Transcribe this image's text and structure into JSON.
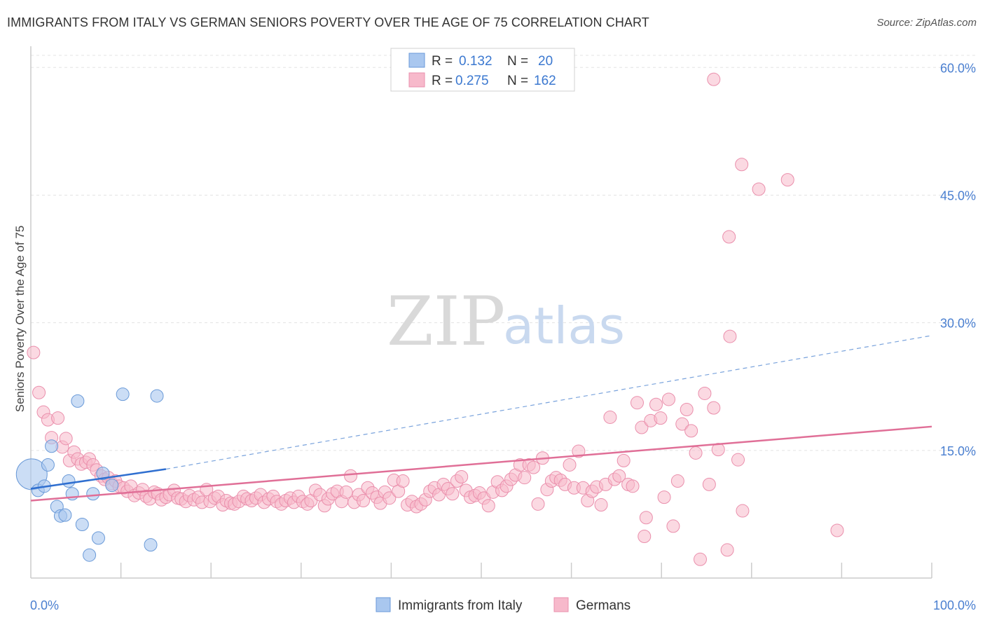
{
  "header": {
    "title": "IMMIGRANTS FROM ITALY VS GERMAN SENIORS POVERTY OVER THE AGE OF 75 CORRELATION CHART",
    "source": "Source: ZipAtlas.com"
  },
  "watermark": {
    "zip": "ZIP",
    "atlas": "atlas"
  },
  "legend": {
    "rows": [
      {
        "r_label": "R =",
        "r_value": "0.132",
        "n_label": "N =",
        "n_value": "20",
        "color": "#a9c7ef",
        "stroke": "#6a9ad8"
      },
      {
        "r_label": "R =",
        "r_value": "0.275",
        "n_label": "N =",
        "n_value": "162",
        "color": "#f7b9cb",
        "stroke": "#ea8fac"
      }
    ]
  },
  "chart_data": {
    "type": "scatter",
    "ylabel": "Seniors Poverty Over the Age of 75",
    "xlim": [
      0,
      100
    ],
    "ylim": [
      0,
      62
    ],
    "x_tick_labels": [
      {
        "value": 0,
        "label": "0.0%"
      },
      {
        "value": 100,
        "label": "100.0%"
      }
    ],
    "y_tick_labels": [
      {
        "value": 15,
        "label": "15.0%"
      },
      {
        "value": 30,
        "label": "30.0%"
      },
      {
        "value": 45,
        "label": "45.0%"
      },
      {
        "value": 60,
        "label": "60.0%"
      }
    ],
    "grid": true,
    "legend_position": "top-center",
    "series": [
      {
        "name": "Immigrants from Italy",
        "color": "#a9c7ef",
        "stroke": "#6a9ad8",
        "line_color": "#2f6fd0",
        "trend": {
          "x0": 0,
          "y0": 10.5,
          "x1": 15,
          "y1": 12.8,
          "dashed_to_x": 100,
          "dashed_to_y": 28.5
        },
        "points": [
          [
            0.1,
            12.2,
            22
          ],
          [
            0.8,
            10.3,
            9
          ],
          [
            1.5,
            10.8,
            9
          ],
          [
            1.9,
            13.3,
            9
          ],
          [
            2.3,
            15.5,
            9
          ],
          [
            2.9,
            8.4,
            9
          ],
          [
            3.3,
            7.3,
            9
          ],
          [
            3.8,
            7.4,
            9
          ],
          [
            4.2,
            11.4,
            9
          ],
          [
            4.6,
            9.9,
            9
          ],
          [
            5.2,
            20.8,
            9
          ],
          [
            5.7,
            6.3,
            9
          ],
          [
            6.5,
            2.7,
            9
          ],
          [
            6.9,
            9.9,
            9
          ],
          [
            7.5,
            4.7,
            9
          ],
          [
            8.0,
            12.3,
            9
          ],
          [
            9.0,
            10.9,
            9
          ],
          [
            10.2,
            21.6,
            9
          ],
          [
            13.3,
            3.9,
            9
          ],
          [
            14.0,
            21.4,
            9
          ]
        ]
      },
      {
        "name": "Germans",
        "color": "#f7b9cb",
        "stroke": "#ea8fac",
        "line_color": "#e06f97",
        "trend": {
          "x0": 0,
          "y0": 9.1,
          "x1": 100,
          "y1": 17.8
        },
        "points": [
          [
            0.3,
            26.5
          ],
          [
            0.9,
            21.8
          ],
          [
            1.4,
            19.5
          ],
          [
            1.9,
            18.6
          ],
          [
            2.3,
            16.5
          ],
          [
            3.0,
            18.8
          ],
          [
            3.5,
            15.4
          ],
          [
            3.9,
            16.4
          ],
          [
            4.3,
            13.8
          ],
          [
            4.8,
            14.8
          ],
          [
            5.2,
            14.0
          ],
          [
            5.6,
            13.4
          ],
          [
            6.1,
            13.6
          ],
          [
            6.5,
            14.0
          ],
          [
            6.9,
            13.3
          ],
          [
            7.3,
            12.7
          ],
          [
            7.8,
            12.0
          ],
          [
            8.2,
            11.6
          ],
          [
            8.6,
            11.8
          ],
          [
            9.0,
            11.1
          ],
          [
            9.4,
            11.4
          ],
          [
            9.8,
            10.8
          ],
          [
            10.3,
            10.6
          ],
          [
            10.7,
            10.2
          ],
          [
            11.1,
            10.8
          ],
          [
            11.5,
            9.7
          ],
          [
            12.0,
            10.0
          ],
          [
            12.4,
            10.4
          ],
          [
            12.8,
            9.6
          ],
          [
            13.2,
            9.3
          ],
          [
            13.7,
            10.1
          ],
          [
            14.1,
            9.9
          ],
          [
            14.5,
            9.2
          ],
          [
            15.0,
            9.5
          ],
          [
            15.4,
            9.8
          ],
          [
            15.9,
            10.3
          ],
          [
            16.3,
            9.4
          ],
          [
            16.7,
            9.3
          ],
          [
            17.2,
            9.0
          ],
          [
            17.6,
            9.7
          ],
          [
            18.1,
            9.2
          ],
          [
            18.6,
            9.5
          ],
          [
            19.0,
            8.9
          ],
          [
            19.5,
            10.4
          ],
          [
            19.9,
            9.0
          ],
          [
            20.4,
            9.4
          ],
          [
            20.8,
            9.6
          ],
          [
            21.3,
            8.6
          ],
          [
            21.7,
            9.1
          ],
          [
            22.2,
            8.8
          ],
          [
            22.6,
            8.7
          ],
          [
            23.1,
            9.0
          ],
          [
            23.6,
            9.6
          ],
          [
            24.0,
            9.3
          ],
          [
            24.5,
            9.1
          ],
          [
            25.0,
            9.4
          ],
          [
            25.5,
            9.8
          ],
          [
            25.9,
            8.9
          ],
          [
            26.4,
            9.3
          ],
          [
            26.9,
            9.6
          ],
          [
            27.3,
            9.0
          ],
          [
            27.8,
            8.7
          ],
          [
            28.3,
            9.1
          ],
          [
            28.8,
            9.4
          ],
          [
            29.2,
            8.9
          ],
          [
            29.7,
            9.6
          ],
          [
            30.2,
            9.0
          ],
          [
            30.7,
            8.7
          ],
          [
            31.1,
            9.1
          ],
          [
            31.6,
            10.3
          ],
          [
            32.1,
            9.8
          ],
          [
            32.6,
            8.5
          ],
          [
            33.0,
            9.3
          ],
          [
            33.5,
            9.9
          ],
          [
            34.0,
            10.2
          ],
          [
            34.5,
            9.0
          ],
          [
            35.0,
            10.1
          ],
          [
            35.5,
            12.0
          ],
          [
            35.9,
            8.9
          ],
          [
            36.4,
            9.8
          ],
          [
            36.9,
            9.1
          ],
          [
            37.4,
            10.6
          ],
          [
            37.9,
            10.0
          ],
          [
            38.4,
            9.5
          ],
          [
            38.8,
            8.8
          ],
          [
            39.3,
            10.1
          ],
          [
            39.8,
            9.4
          ],
          [
            40.3,
            11.5
          ],
          [
            40.8,
            10.2
          ],
          [
            41.3,
            11.4
          ],
          [
            41.8,
            8.6
          ],
          [
            42.3,
            9.0
          ],
          [
            42.8,
            8.4
          ],
          [
            43.3,
            8.7
          ],
          [
            43.8,
            9.2
          ],
          [
            44.3,
            10.2
          ],
          [
            44.8,
            10.6
          ],
          [
            45.3,
            9.8
          ],
          [
            45.8,
            11.0
          ],
          [
            46.3,
            10.5
          ],
          [
            46.8,
            9.9
          ],
          [
            47.3,
            11.4
          ],
          [
            47.8,
            11.9
          ],
          [
            48.3,
            10.3
          ],
          [
            48.8,
            9.5
          ],
          [
            49.3,
            9.7
          ],
          [
            49.8,
            10.0
          ],
          [
            50.3,
            9.4
          ],
          [
            50.8,
            8.5
          ],
          [
            51.3,
            10.1
          ],
          [
            51.8,
            11.3
          ],
          [
            52.3,
            10.3
          ],
          [
            52.8,
            10.8
          ],
          [
            53.3,
            11.6
          ],
          [
            53.8,
            12.1
          ],
          [
            54.3,
            13.3
          ],
          [
            54.8,
            11.8
          ],
          [
            55.3,
            13.3
          ],
          [
            55.8,
            13.0
          ],
          [
            56.3,
            8.7
          ],
          [
            56.8,
            14.1
          ],
          [
            57.3,
            10.4
          ],
          [
            57.8,
            11.4
          ],
          [
            58.3,
            11.8
          ],
          [
            58.8,
            11.5
          ],
          [
            59.3,
            11.0
          ],
          [
            59.8,
            13.3
          ],
          [
            60.3,
            10.6
          ],
          [
            60.8,
            14.9
          ],
          [
            61.3,
            10.6
          ],
          [
            61.8,
            9.1
          ],
          [
            62.3,
            10.2
          ],
          [
            62.8,
            10.7
          ],
          [
            63.3,
            8.6
          ],
          [
            63.8,
            11.0
          ],
          [
            64.3,
            18.9
          ],
          [
            64.8,
            11.6
          ],
          [
            65.3,
            12.0
          ],
          [
            65.8,
            13.8
          ],
          [
            66.3,
            11.0
          ],
          [
            66.8,
            10.8
          ],
          [
            67.3,
            20.6
          ],
          [
            67.8,
            17.7
          ],
          [
            68.3,
            7.1
          ],
          [
            68.8,
            18.5
          ],
          [
            69.4,
            20.4
          ],
          [
            69.9,
            18.8
          ],
          [
            70.3,
            9.5
          ],
          [
            70.8,
            21.0
          ],
          [
            71.3,
            6.1
          ],
          [
            71.8,
            11.4
          ],
          [
            72.3,
            18.1
          ],
          [
            72.8,
            19.8
          ],
          [
            73.3,
            17.3
          ],
          [
            73.8,
            14.7
          ],
          [
            74.3,
            2.2
          ],
          [
            74.8,
            21.7
          ],
          [
            75.3,
            11.0
          ],
          [
            75.8,
            20.0
          ],
          [
            76.3,
            15.1
          ],
          [
            77.3,
            3.3
          ],
          [
            77.6,
            28.4
          ],
          [
            78.5,
            13.9
          ],
          [
            79.0,
            7.9
          ],
          [
            75.8,
            58.6
          ],
          [
            78.9,
            48.6
          ],
          [
            80.8,
            45.7
          ],
          [
            84.0,
            46.8
          ],
          [
            77.5,
            40.1
          ],
          [
            89.5,
            5.6
          ],
          [
            68.1,
            4.9
          ]
        ]
      }
    ]
  },
  "bottom_legend": [
    {
      "label": "Immigrants from Italy",
      "color": "#a9c7ef",
      "stroke": "#6a9ad8"
    },
    {
      "label": "Germans",
      "color": "#f7b9cb",
      "stroke": "#ea8fac"
    }
  ]
}
